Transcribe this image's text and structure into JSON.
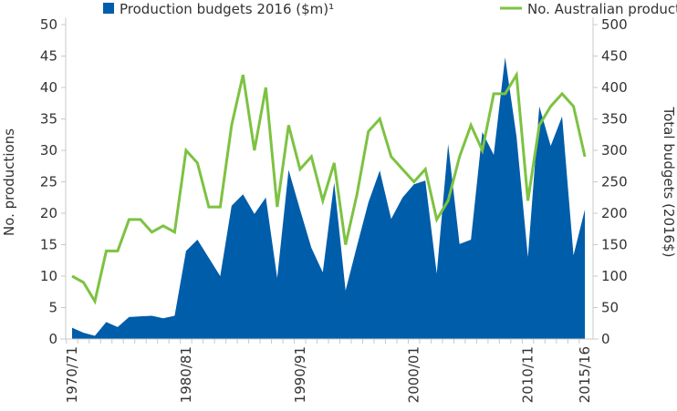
{
  "chart_data": {
    "type": "area+line",
    "legend_position": "top",
    "grid": false,
    "x": [
      "1970/71",
      "1971/72",
      "1972/73",
      "1973/74",
      "1974/75",
      "1975/76",
      "1976/77",
      "1977/78",
      "1978/79",
      "1979/80",
      "1980/81",
      "1981/82",
      "1982/83",
      "1983/84",
      "1984/85",
      "1985/86",
      "1986/87",
      "1987/88",
      "1988/89",
      "1989/90",
      "1990/91",
      "1991/92",
      "1992/93",
      "1993/94",
      "1994/95",
      "1995/96",
      "1996/97",
      "1997/98",
      "1998/99",
      "1999/00",
      "2000/01",
      "2001/02",
      "2002/03",
      "2003/04",
      "2004/05",
      "2005/06",
      "2006/07",
      "2007/08",
      "2008/09",
      "2009/10",
      "2010/11",
      "2011/12",
      "2012/13",
      "2013/14",
      "2014/15",
      "2015/16"
    ],
    "x_tick_labels": [
      "1970/71",
      "1980/81",
      "1990/91",
      "2000/01",
      "2010/11",
      "2015/16"
    ],
    "y_left": {
      "label": "No. productions",
      "range": [
        0,
        50
      ],
      "ticks": [
        "0",
        "5",
        "10",
        "15",
        "20",
        "25",
        "30",
        "35",
        "40",
        "45",
        "50"
      ]
    },
    "y_right": {
      "label": "Total budgets (2016$)",
      "range": [
        0,
        500
      ],
      "ticks": [
        "0",
        "50",
        "100",
        "150",
        "200",
        "250",
        "300",
        "350",
        "400",
        "450",
        "500"
      ]
    },
    "series": [
      {
        "name": "Production budgets 2016 ($m)¹",
        "type": "area",
        "axis": "right",
        "color": "#005DAA",
        "values": [
          18,
          10,
          5,
          27,
          19,
          35,
          36,
          37,
          33,
          37,
          140,
          158,
          129,
          100,
          212,
          230,
          199,
          225,
          97,
          269,
          206,
          145,
          106,
          249,
          77,
          148,
          217,
          268,
          191,
          225,
          246,
          252,
          104,
          310,
          151,
          158,
          329,
          293,
          448,
          322,
          130,
          370,
          307,
          354,
          133,
          206
        ]
      },
      {
        "name": "No. Australian productions",
        "type": "line",
        "axis": "left",
        "color": "#7DC242",
        "values": [
          10,
          9,
          6,
          14,
          14,
          19,
          19,
          17,
          18,
          17,
          30,
          28,
          21,
          21,
          34,
          42,
          30,
          40,
          21,
          34,
          27,
          29,
          22,
          28,
          15,
          23,
          33,
          35,
          29,
          27,
          25,
          27,
          19,
          22,
          29,
          34,
          30,
          39,
          39,
          42,
          22,
          34,
          37,
          39,
          37,
          29
        ]
      }
    ]
  }
}
